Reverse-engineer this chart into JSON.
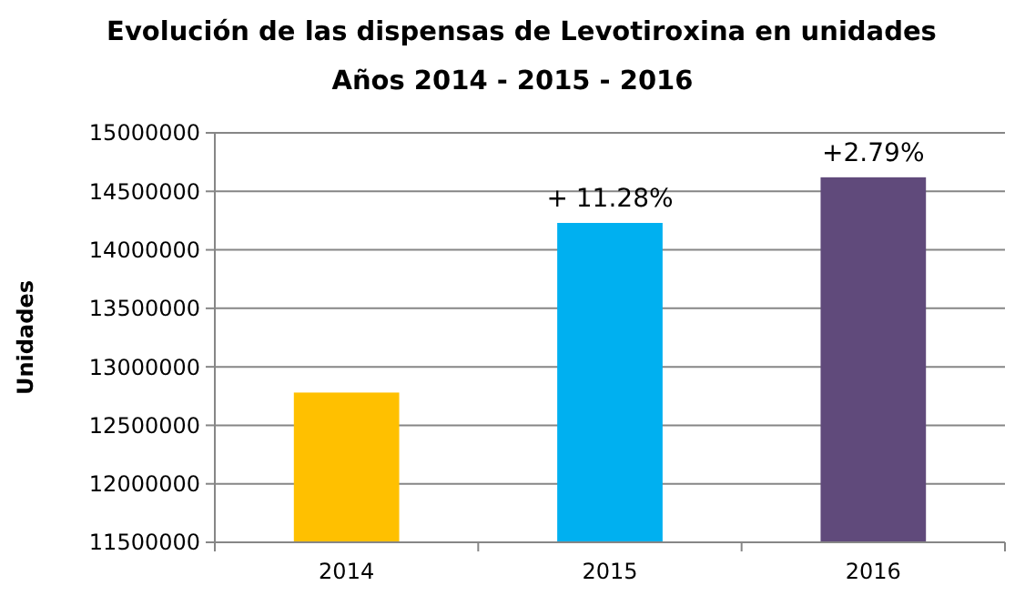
{
  "chart_data": {
    "type": "bar",
    "title": "Evolución de las dispensas de Levotiroxina en unidades",
    "subtitle": "Años 2014 - 2015 - 2016",
    "ylabel": "Unidades",
    "categories": [
      "2014",
      "2015",
      "2016"
    ],
    "values": [
      12780000,
      14230000,
      14620000
    ],
    "colors": [
      "#ffc000",
      "#00b0f0",
      "#604a7b"
    ],
    "annotations": [
      {
        "text": "+ 11.28%",
        "x": "2015",
        "y": 14230000
      },
      {
        "text": "+2.79%",
        "x": "2016",
        "y": 14620000
      }
    ],
    "ylim": [
      11500000,
      15000000
    ],
    "yticks": [
      11500000,
      12000000,
      12500000,
      13000000,
      13500000,
      14000000,
      14500000,
      15000000
    ],
    "grid": "y"
  }
}
